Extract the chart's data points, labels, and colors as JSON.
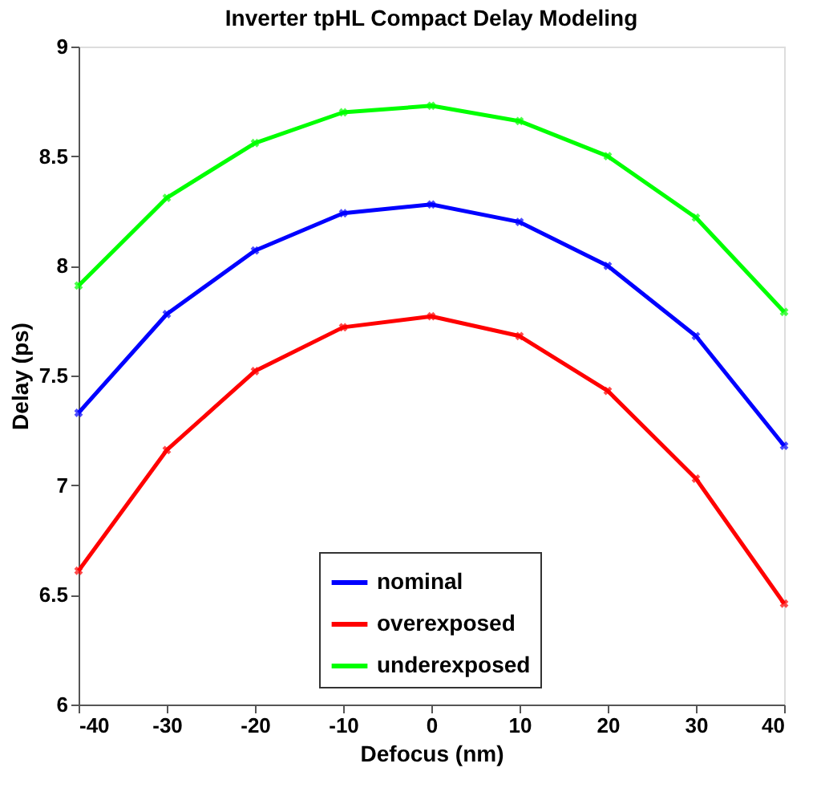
{
  "chart_data": {
    "type": "line",
    "title": "Inverter tpHL Compact Delay Modeling",
    "xlabel": "Defocus (nm)",
    "ylabel": "Delay (ps)",
    "x": [
      -40,
      -30,
      -20,
      -10,
      0,
      10,
      20,
      30,
      40
    ],
    "series": [
      {
        "name": "nominal",
        "color": "#0000ff",
        "values": [
          7.33,
          7.78,
          8.07,
          8.24,
          8.28,
          8.2,
          8.0,
          7.68,
          7.18
        ]
      },
      {
        "name": "overexposed",
        "color": "#ff0000",
        "values": [
          6.61,
          7.16,
          7.52,
          7.72,
          7.77,
          7.68,
          7.43,
          7.03,
          6.46
        ]
      },
      {
        "name": "underexposed",
        "color": "#00ff00",
        "values": [
          7.91,
          8.31,
          8.56,
          8.7,
          8.73,
          8.66,
          8.5,
          8.22,
          7.79
        ]
      }
    ],
    "xlim": [
      -40,
      40
    ],
    "xticks": [
      -40,
      -30,
      -20,
      -10,
      0,
      10,
      20,
      30,
      40
    ],
    "ylim": [
      6,
      9
    ],
    "yticks": [
      6,
      6.5,
      7,
      7.5,
      8,
      8.5,
      9
    ],
    "marker": "cross",
    "line_style": "solid",
    "legend": "bottom",
    "grid": false
  }
}
